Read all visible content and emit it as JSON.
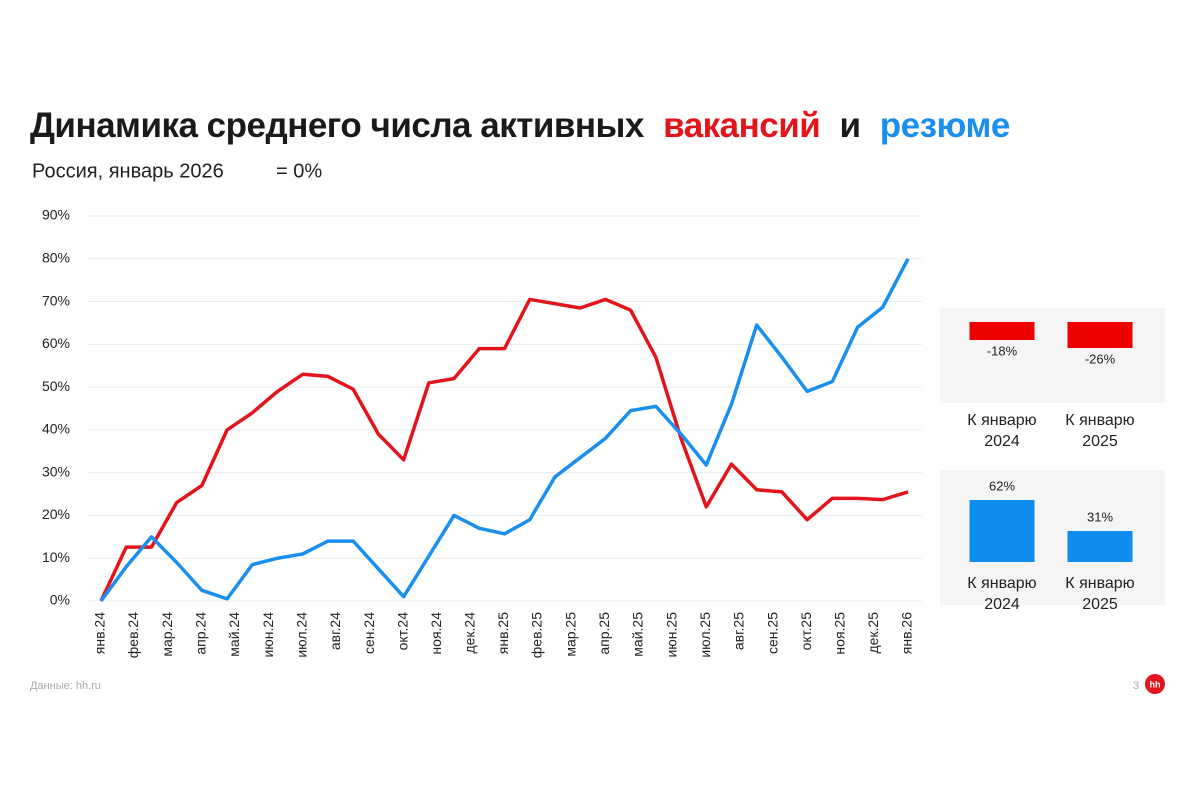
{
  "header": {
    "title": [
      {
        "text": "Динамика среднего числа активных",
        "color": "#1a1a1a"
      },
      {
        "text": "вакансий",
        "color": "#e3141b"
      },
      {
        "text": "и",
        "color": "#1a1a1a"
      },
      {
        "text": "резюме",
        "color": "#1b8ff0"
      }
    ],
    "subtitle": "Россия, январь 2026",
    "subtitle_note": "= 0%"
  },
  "chart_data": [
    {
      "type": "line",
      "x": [
        0,
        1,
        2,
        3,
        4,
        5,
        6,
        7,
        8,
        9,
        10,
        11,
        12,
        13,
        14,
        15,
        16,
        17,
        18,
        19,
        20,
        21,
        22,
        23,
        24,
        25,
        26,
        27,
        28,
        29,
        30,
        31,
        32
      ],
      "xlim": [
        0,
        32
      ],
      "xticks": [
        {
          "value": 0,
          "label": "янв.24"
        },
        {
          "value": 1.33,
          "label": "фев.24"
        },
        {
          "value": 2.67,
          "label": "мар.24"
        },
        {
          "value": 4,
          "label": "апр.24"
        },
        {
          "value": 5.33,
          "label": "май.24"
        },
        {
          "value": 6.67,
          "label": "июн.24"
        },
        {
          "value": 8,
          "label": "июл.24"
        },
        {
          "value": 9.33,
          "label": "авг.24"
        },
        {
          "value": 10.67,
          "label": "сен.24"
        },
        {
          "value": 12,
          "label": "окт.24"
        },
        {
          "value": 13.33,
          "label": "ноя.24"
        },
        {
          "value": 14.67,
          "label": "дек.24"
        },
        {
          "value": 16,
          "label": "янв.25"
        },
        {
          "value": 17.33,
          "label": "фев.25"
        },
        {
          "value": 18.67,
          "label": "мар.25"
        },
        {
          "value": 20,
          "label": "апр.25"
        },
        {
          "value": 21.33,
          "label": "май.25"
        },
        {
          "value": 22.67,
          "label": "июн.25"
        },
        {
          "value": 24,
          "label": "июл.25"
        },
        {
          "value": 25.33,
          "label": "авг.25"
        },
        {
          "value": 26.67,
          "label": "сен.25"
        },
        {
          "value": 28,
          "label": "окт.25"
        },
        {
          "value": 29.33,
          "label": "ноя.25"
        },
        {
          "value": 30.67,
          "label": "дек.25"
        },
        {
          "value": 32,
          "label": "янв.26"
        }
      ],
      "ylim": [
        0,
        90
      ],
      "yticks": [
        {
          "value": 0,
          "label": "0%"
        },
        {
          "value": 10,
          "label": "10%"
        },
        {
          "value": 20,
          "label": "20%"
        },
        {
          "value": 30,
          "label": "30%"
        },
        {
          "value": 40,
          "label": "40%"
        },
        {
          "value": 50,
          "label": "50%"
        },
        {
          "value": 60,
          "label": "60%"
        },
        {
          "value": 70,
          "label": "70%"
        },
        {
          "value": 80,
          "label": "80%"
        },
        {
          "value": 90,
          "label": "90%"
        }
      ],
      "grid": true,
      "series": [
        {
          "color": "#e3141b",
          "values": [
            0,
            12.6,
            12.6,
            23,
            27,
            40,
            44,
            49,
            53,
            52.5,
            49.5,
            39,
            33,
            51,
            52,
            59,
            59,
            70.5,
            69.5,
            68.5,
            70.5,
            68,
            57,
            38,
            22,
            32,
            26,
            25.5,
            19,
            24,
            24,
            23.7,
            25.5
          ]
        },
        {
          "color": "#1b8ff0",
          "values": [
            0,
            8,
            15,
            9,
            2.5,
            0.5,
            8.5,
            10,
            11,
            14,
            14,
            7.5,
            1,
            10.5,
            20,
            17,
            15.7,
            19,
            29,
            33.5,
            38,
            44.5,
            45.5,
            39,
            31.8,
            46,
            64.5,
            57,
            49,
            51.3,
            64,
            68.7,
            80
          ]
        }
      ]
    },
    {
      "type": "bar",
      "categories": [
        "К январю 2024",
        "К январю 2025"
      ],
      "values": [
        -18,
        -26
      ],
      "value_labels": [
        "-18%",
        "-26%"
      ],
      "color": "#ee0000"
    },
    {
      "type": "bar",
      "categories": [
        "К январю 2024",
        "К январю 2025"
      ],
      "values": [
        62,
        31
      ],
      "value_labels": [
        "62%",
        "31%"
      ],
      "color": "#0f8cf0"
    }
  ],
  "footer": {
    "source": "Данные: hh.ru",
    "page": "3",
    "logo": "hh"
  }
}
